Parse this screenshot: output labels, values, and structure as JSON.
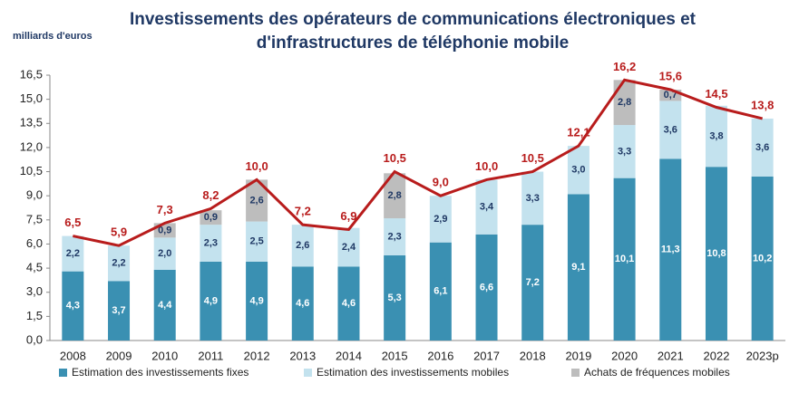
{
  "chart_data": {
    "type": "bar",
    "stacked": true,
    "title": [
      "Investissements des opérateurs de communications électroniques et",
      "d'infrastructures de téléphonie mobile"
    ],
    "y_label": "milliards d'euros",
    "categories": [
      "2008",
      "2009",
      "2010",
      "2011",
      "2012",
      "2013",
      "2014",
      "2015",
      "2016",
      "2017",
      "2018",
      "2019",
      "2020",
      "2021",
      "2022",
      "2023p"
    ],
    "series": [
      {
        "name": "Estimation des investissements fixes",
        "color": "#3a90b2",
        "values": [
          4.3,
          3.7,
          4.4,
          4.9,
          4.9,
          4.6,
          4.6,
          5.3,
          6.1,
          6.6,
          7.2,
          9.1,
          10.1,
          11.3,
          10.8,
          10.2
        ],
        "value_labels": [
          "4,3",
          "3,7",
          "4,4",
          "4,9",
          "4,9",
          "4,6",
          "4,6",
          "5,3",
          "6,1",
          "6,6",
          "7,2",
          "9,1",
          "10,1",
          "11,3",
          "10,8",
          "10,2"
        ],
        "label_color": "#ffffff"
      },
      {
        "name": "Estimation des investissements mobiles",
        "color": "#c3e2ee",
        "values": [
          2.2,
          2.2,
          2.0,
          2.3,
          2.5,
          2.6,
          2.4,
          2.3,
          2.9,
          3.4,
          3.3,
          3.0,
          3.3,
          3.6,
          3.8,
          3.6
        ],
        "value_labels": [
          "2,2",
          "2,2",
          "2,0",
          "2,3",
          "2,5",
          "2,6",
          "2,4",
          "2,3",
          "2,9",
          "3,4",
          "3,3",
          "3,0",
          "3,3",
          "3,6",
          "3,8",
          "3,6"
        ],
        "label_color": "#1f3864"
      },
      {
        "name": "Achats de fréquences mobiles",
        "color": "#bdbdbd",
        "values": [
          null,
          null,
          0.9,
          0.9,
          2.6,
          null,
          null,
          2.8,
          null,
          null,
          null,
          null,
          2.8,
          0.7,
          null,
          null
        ],
        "value_labels": [
          null,
          null,
          "0,9",
          "0,9",
          "2,6",
          null,
          null,
          "2,8",
          null,
          null,
          null,
          null,
          "2,8",
          "0,7",
          null,
          null
        ],
        "label_color": "#1f3864"
      }
    ],
    "total": {
      "color": "#b81c1c",
      "values": [
        6.5,
        5.9,
        7.3,
        8.2,
        10.0,
        7.2,
        6.9,
        10.5,
        9.0,
        10.0,
        10.5,
        12.1,
        16.2,
        15.6,
        14.5,
        13.8
      ],
      "value_labels": [
        "6,5",
        "5,9",
        "7,3",
        "8,2",
        "10,0",
        "7,2",
        "6,9",
        "10,5",
        "9,0",
        "10,0",
        "10,5",
        "12,1",
        "16,2",
        "15,6",
        "14,5",
        "13,8"
      ]
    },
    "ylim": [
      0,
      16.5
    ],
    "yticks": [
      {
        "value": 0,
        "label": "0,0"
      },
      {
        "value": 1.5,
        "label": "1,5"
      },
      {
        "value": 3,
        "label": "3,0"
      },
      {
        "value": 4.5,
        "label": "4,5"
      },
      {
        "value": 6,
        "label": "6,0"
      },
      {
        "value": 7.5,
        "label": "7,5"
      },
      {
        "value": 9,
        "label": "9,0"
      },
      {
        "value": 10.5,
        "label": "10,5"
      },
      {
        "value": 12,
        "label": "12,0"
      },
      {
        "value": 13.5,
        "label": "13,5"
      },
      {
        "value": 15,
        "label": "15,0"
      },
      {
        "value": 16.5,
        "label": "16,5"
      }
    ],
    "grid": false,
    "legend": "bottom"
  }
}
